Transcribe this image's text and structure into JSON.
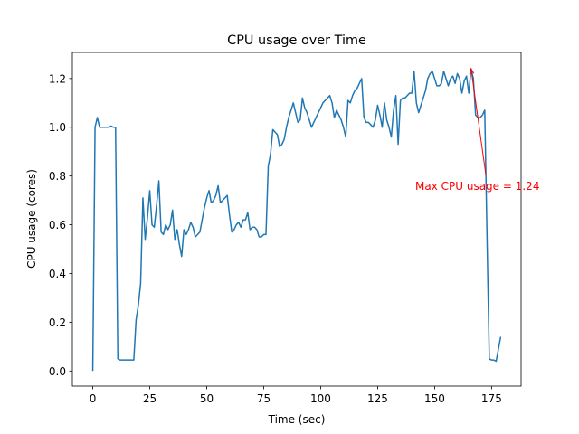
{
  "chart_data": {
    "type": "line",
    "title": "CPU usage over Time",
    "xlabel": "Time (sec)",
    "ylabel": "CPU usage (cores)",
    "x": [
      0,
      1,
      2,
      3,
      4,
      5,
      6,
      7,
      8,
      9,
      10,
      11,
      12,
      13,
      14,
      15,
      16,
      17,
      18,
      19,
      20,
      21,
      22,
      23,
      24,
      25,
      26,
      27,
      28,
      29,
      30,
      31,
      32,
      33,
      34,
      35,
      36,
      37,
      38,
      39,
      40,
      41,
      42,
      43,
      44,
      45,
      46,
      47,
      48,
      49,
      50,
      51,
      52,
      53,
      54,
      55,
      56,
      57,
      58,
      59,
      60,
      61,
      62,
      63,
      64,
      65,
      66,
      67,
      68,
      69,
      70,
      71,
      72,
      73,
      74,
      75,
      76,
      77,
      78,
      79,
      80,
      81,
      82,
      83,
      84,
      85,
      86,
      87,
      88,
      89,
      90,
      91,
      92,
      93,
      94,
      95,
      96,
      97,
      98,
      99,
      100,
      101,
      102,
      103,
      104,
      105,
      106,
      107,
      108,
      109,
      110,
      111,
      112,
      113,
      114,
      115,
      116,
      117,
      118,
      119,
      120,
      121,
      122,
      123,
      124,
      125,
      126,
      127,
      128,
      129,
      130,
      131,
      132,
      133,
      134,
      135,
      136,
      137,
      138,
      139,
      140,
      141,
      142,
      143,
      144,
      145,
      146,
      147,
      148,
      149,
      150,
      151,
      152,
      153,
      154,
      155,
      156,
      157,
      158,
      159,
      160,
      161,
      162,
      163,
      164,
      165,
      166,
      167,
      168,
      169,
      170,
      171,
      172,
      173,
      174,
      175,
      176,
      177,
      178,
      179
    ],
    "series": [
      {
        "name": "CPU usage",
        "color": "#1f77b4",
        "values": [
          0.0,
          1.0,
          1.04,
          1.0,
          1.0,
          1.0,
          1.0,
          1.0,
          1.005,
          1.0,
          1.0,
          0.05,
          0.045,
          0.045,
          0.045,
          0.045,
          0.045,
          0.045,
          0.045,
          0.21,
          0.27,
          0.36,
          0.71,
          0.54,
          0.63,
          0.74,
          0.6,
          0.59,
          0.68,
          0.78,
          0.57,
          0.56,
          0.6,
          0.58,
          0.6,
          0.66,
          0.54,
          0.58,
          0.52,
          0.47,
          0.58,
          0.56,
          0.58,
          0.61,
          0.59,
          0.55,
          0.56,
          0.57,
          0.62,
          0.67,
          0.71,
          0.74,
          0.69,
          0.7,
          0.72,
          0.76,
          0.69,
          0.7,
          0.71,
          0.72,
          0.64,
          0.57,
          0.58,
          0.6,
          0.61,
          0.59,
          0.62,
          0.62,
          0.65,
          0.58,
          0.59,
          0.59,
          0.58,
          0.55,
          0.55,
          0.56,
          0.56,
          0.84,
          0.89,
          0.99,
          0.98,
          0.97,
          0.92,
          0.93,
          0.95,
          1.0,
          1.04,
          1.07,
          1.1,
          1.06,
          1.02,
          1.03,
          1.12,
          1.08,
          1.06,
          1.03,
          1.0,
          1.02,
          1.04,
          1.06,
          1.08,
          1.1,
          1.11,
          1.12,
          1.13,
          1.1,
          1.04,
          1.07,
          1.05,
          1.03,
          1.0,
          0.96,
          1.11,
          1.1,
          1.13,
          1.15,
          1.16,
          1.18,
          1.2,
          1.04,
          1.02,
          1.02,
          1.01,
          1.0,
          1.03,
          1.09,
          1.05,
          1.0,
          1.1,
          1.03,
          1.0,
          0.96,
          1.07,
          1.13,
          0.93,
          1.11,
          1.12,
          1.12,
          1.13,
          1.14,
          1.14,
          1.23,
          1.1,
          1.06,
          1.09,
          1.12,
          1.15,
          1.2,
          1.22,
          1.23,
          1.2,
          1.17,
          1.17,
          1.18,
          1.23,
          1.2,
          1.17,
          1.2,
          1.21,
          1.18,
          1.22,
          1.2,
          1.14,
          1.19,
          1.21,
          1.14,
          1.24,
          1.2,
          1.05,
          1.04,
          1.04,
          1.05,
          1.07,
          0.55,
          0.05,
          0.045,
          0.045,
          0.04,
          0.09,
          0.14
        ]
      }
    ],
    "xlim": [
      -8.95,
      187.95
    ],
    "ylim": [
      -0.062,
      1.307
    ],
    "xticks": [
      0,
      25,
      50,
      75,
      100,
      125,
      150,
      175
    ],
    "yticks": [
      {
        "value": 0,
        "label": "0.0"
      },
      0.2,
      0.4,
      0.6,
      0.8,
      {
        "value": 1,
        "label": "1.0"
      },
      1.2
    ],
    "annotation": {
      "text": "Max CPU usage = 1.24",
      "x": 166,
      "y": 1.24,
      "color": "red"
    }
  }
}
